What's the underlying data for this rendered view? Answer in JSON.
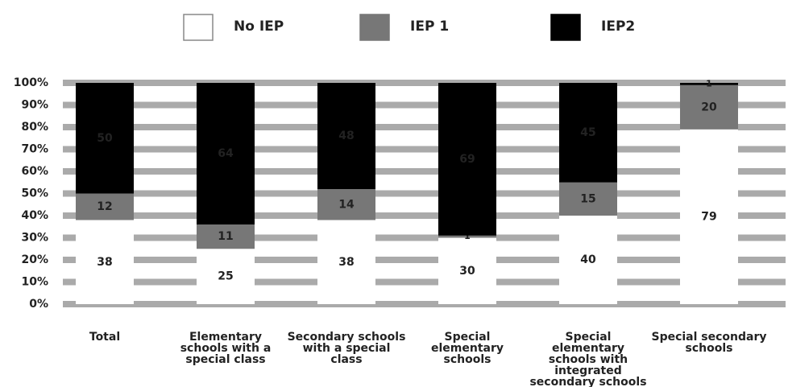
{
  "chart_data": {
    "type": "stacked_bar",
    "categories": [
      "Total",
      "Elementary schools with a special class",
      "Secondary schools with a special class",
      "Special elementary schools",
      "Special elementary schools with integrated secondary schools",
      "Special secondary schools"
    ],
    "series": [
      {
        "name": "No IEP",
        "color": "#ffffff",
        "values": [
          38,
          25,
          38,
          30,
          40,
          79
        ]
      },
      {
        "name": "IEP 1",
        "color": "#777777",
        "values": [
          12,
          11,
          14,
          1,
          15,
          20
        ]
      },
      {
        "name": "IEP2",
        "color": "#000000",
        "values": [
          50,
          64,
          48,
          69,
          45,
          1
        ]
      }
    ],
    "ylim": [
      0,
      100
    ],
    "yticks": [
      {
        "value": 0,
        "label": "0%"
      },
      {
        "value": 10,
        "label": "10%"
      },
      {
        "value": 20,
        "label": "20%"
      },
      {
        "value": 30,
        "label": "30%"
      },
      {
        "value": 40,
        "label": "40%"
      },
      {
        "value": 50,
        "label": "50%"
      },
      {
        "value": 60,
        "label": "60%"
      },
      {
        "value": 70,
        "label": "70%"
      },
      {
        "value": 80,
        "label": "80%"
      },
      {
        "value": 90,
        "label": "90%"
      },
      {
        "value": 100,
        "label": "100%"
      }
    ],
    "grid": true,
    "legend": "top"
  }
}
